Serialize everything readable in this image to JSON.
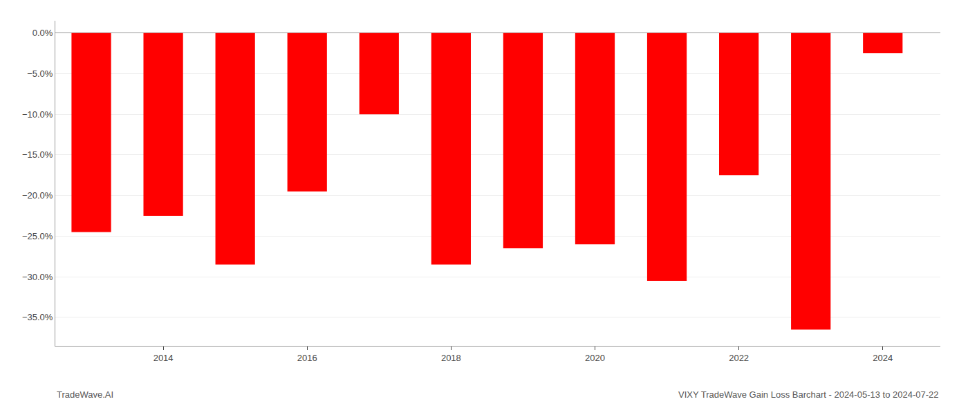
{
  "chart_data": {
    "type": "bar",
    "x": [
      2013,
      2014,
      2015,
      2016,
      2017,
      2018,
      2019,
      2020,
      2021,
      2022,
      2023,
      2024
    ],
    "values": [
      -24.5,
      -22.5,
      -28.5,
      -19.5,
      -10.0,
      -28.5,
      -26.5,
      -26.0,
      -30.5,
      -17.5,
      -36.5,
      -2.5
    ],
    "color": "#ff0000",
    "xlim": [
      2012.5,
      2024.8
    ],
    "xticks": [
      2014,
      2016,
      2018,
      2020,
      2022,
      2024
    ],
    "ylim": [
      -38.5,
      1.5
    ],
    "yticks": [
      {
        "value": 0.0,
        "label": "0.0%"
      },
      {
        "value": -5.0,
        "label": "−5.0%"
      },
      {
        "value": -10.0,
        "label": "−10.0%"
      },
      {
        "value": -15.0,
        "label": "−15.0%"
      },
      {
        "value": -20.0,
        "label": "−20.0%"
      },
      {
        "value": -25.0,
        "label": "−25.0%"
      },
      {
        "value": -30.0,
        "label": "−30.0%"
      },
      {
        "value": -35.0,
        "label": "−35.0%"
      }
    ],
    "grid": true,
    "annotations": [
      "TradeWave.AI",
      "VIXY TradeWave Gain Loss Barchart - 2024-05-13 to 2024-07-22"
    ]
  }
}
